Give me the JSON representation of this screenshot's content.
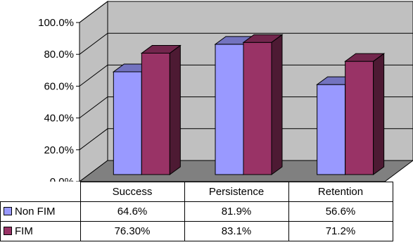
{
  "chart_data": {
    "type": "bar",
    "categories": [
      "Success",
      "Persistence",
      "Retention"
    ],
    "series": [
      {
        "name": "Non FIM",
        "values": [
          64.6,
          81.9,
          56.6
        ],
        "labels": [
          "64.6%",
          "81.9%",
          "56.6%"
        ],
        "color": "#9999ff"
      },
      {
        "name": "FIM",
        "values": [
          76.3,
          83.1,
          71.2
        ],
        "labels": [
          "76.30%",
          "83.1%",
          "71.2%"
        ],
        "color": "#993366"
      }
    ],
    "ylim": [
      0,
      100
    ],
    "yticks": [
      "0.0%",
      "20.0%",
      "40.0%",
      "60.0%",
      "80.0%",
      "100.0%"
    ],
    "grid": true,
    "legend": "data-table"
  }
}
